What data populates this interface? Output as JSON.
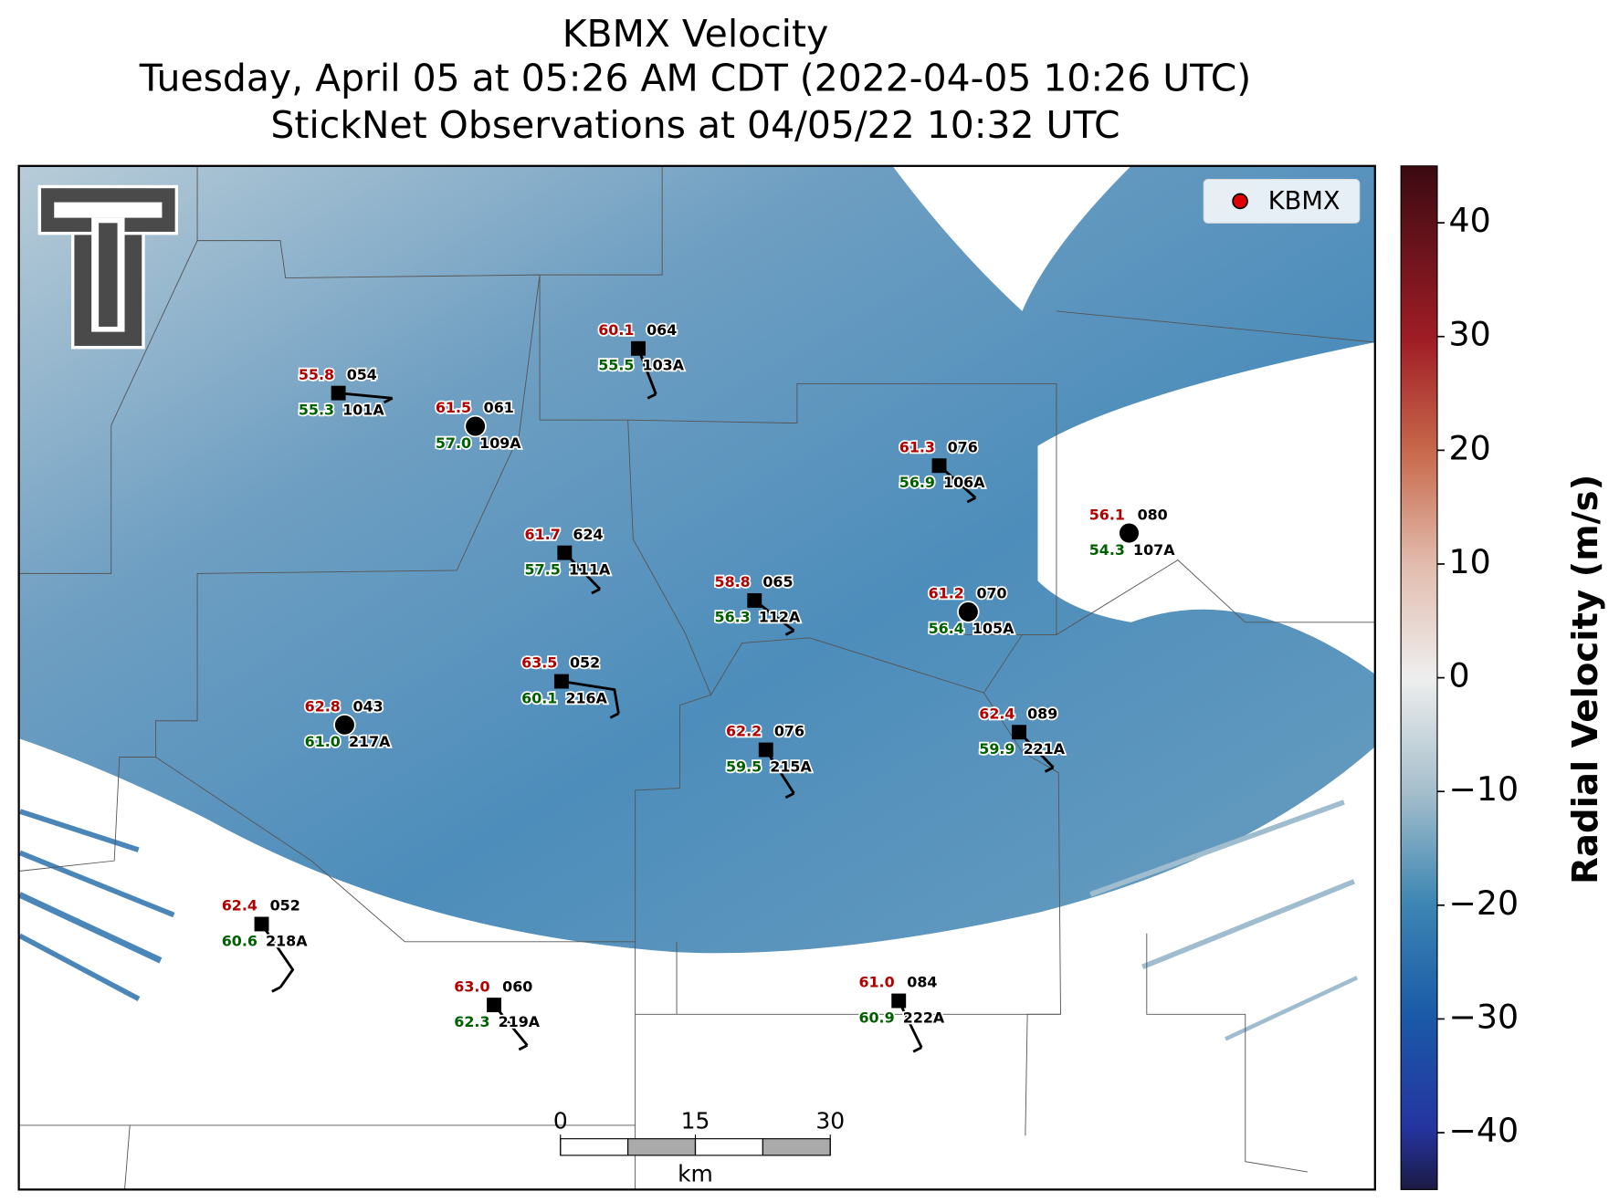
{
  "header": {
    "title": "KBMX Velocity",
    "subtitle": "Tuesday, April 05 at 05:26 AM CDT (2022-04-05 10:26 UTC)",
    "observations": "StickNet Observations at 04/05/22 10:32 UTC"
  },
  "legend": {
    "label": "KBMX",
    "color": "#e00000"
  },
  "colorbar": {
    "label": "Radial Velocity (m/s)",
    "lim": [
      -45,
      45
    ],
    "ticks": [
      {
        "value": -40,
        "label": "−40"
      },
      {
        "value": -30,
        "label": "−30"
      },
      {
        "value": -20,
        "label": "−20"
      },
      {
        "value": -10,
        "label": "−10"
      },
      0,
      10,
      20,
      30,
      40
    ]
  },
  "scale_bar": {
    "ticks": [
      0,
      15,
      30
    ],
    "unit": "km"
  },
  "stations": [
    {
      "id": "101A",
      "temperature": "55.8",
      "dewpoint": "55.3",
      "code": "054"
    },
    {
      "id": "109A",
      "temperature": "61.5",
      "dewpoint": "57.0",
      "code": "061"
    },
    {
      "id": "103A",
      "temperature": "60.1",
      "dewpoint": "55.5",
      "code": "064"
    },
    {
      "id": "106A",
      "temperature": "61.3",
      "dewpoint": "56.9",
      "code": "076"
    },
    {
      "id": "107A",
      "temperature": "56.1",
      "dewpoint": "54.3",
      "code": "080"
    },
    {
      "id": "111A",
      "temperature": "61.7",
      "dewpoint": "57.5",
      "code": "624"
    },
    {
      "id": "112A",
      "temperature": "58.8",
      "dewpoint": "56.3",
      "code": "065"
    },
    {
      "id": "105A",
      "temperature": "61.2",
      "dewpoint": "56.4",
      "code": "070"
    },
    {
      "id": "216A",
      "temperature": "63.5",
      "dewpoint": "60.1",
      "code": "052"
    },
    {
      "id": "217A",
      "temperature": "62.8",
      "dewpoint": "61.0",
      "code": "043"
    },
    {
      "id": "215A",
      "temperature": "62.2",
      "dewpoint": "59.5",
      "code": "076"
    },
    {
      "id": "221A",
      "temperature": "62.4",
      "dewpoint": "59.9",
      "code": "089"
    },
    {
      "id": "218A",
      "temperature": "62.4",
      "dewpoint": "60.6",
      "code": "052"
    },
    {
      "id": "219A",
      "temperature": "63.0",
      "dewpoint": "62.3",
      "code": "060"
    },
    {
      "id": "222A",
      "temperature": "61.0",
      "dewpoint": "60.9",
      "code": "084"
    }
  ]
}
